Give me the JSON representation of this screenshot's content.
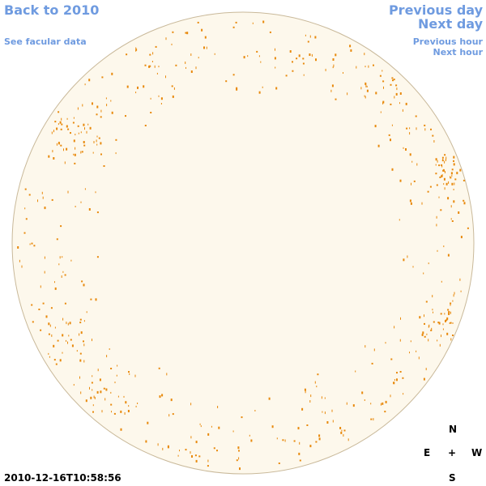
{
  "links": {
    "back": "Back to 2010",
    "facular": "See facular data",
    "previous_day": "Previous day",
    "next_day": "Next day",
    "previous_hour": "Previous hour",
    "next_hour": "Next hour"
  },
  "timestamp": "2010-12-16T10:58:56",
  "compass": {
    "north": "N",
    "east": "E",
    "center": "+",
    "west": "W",
    "south": "S"
  }
}
